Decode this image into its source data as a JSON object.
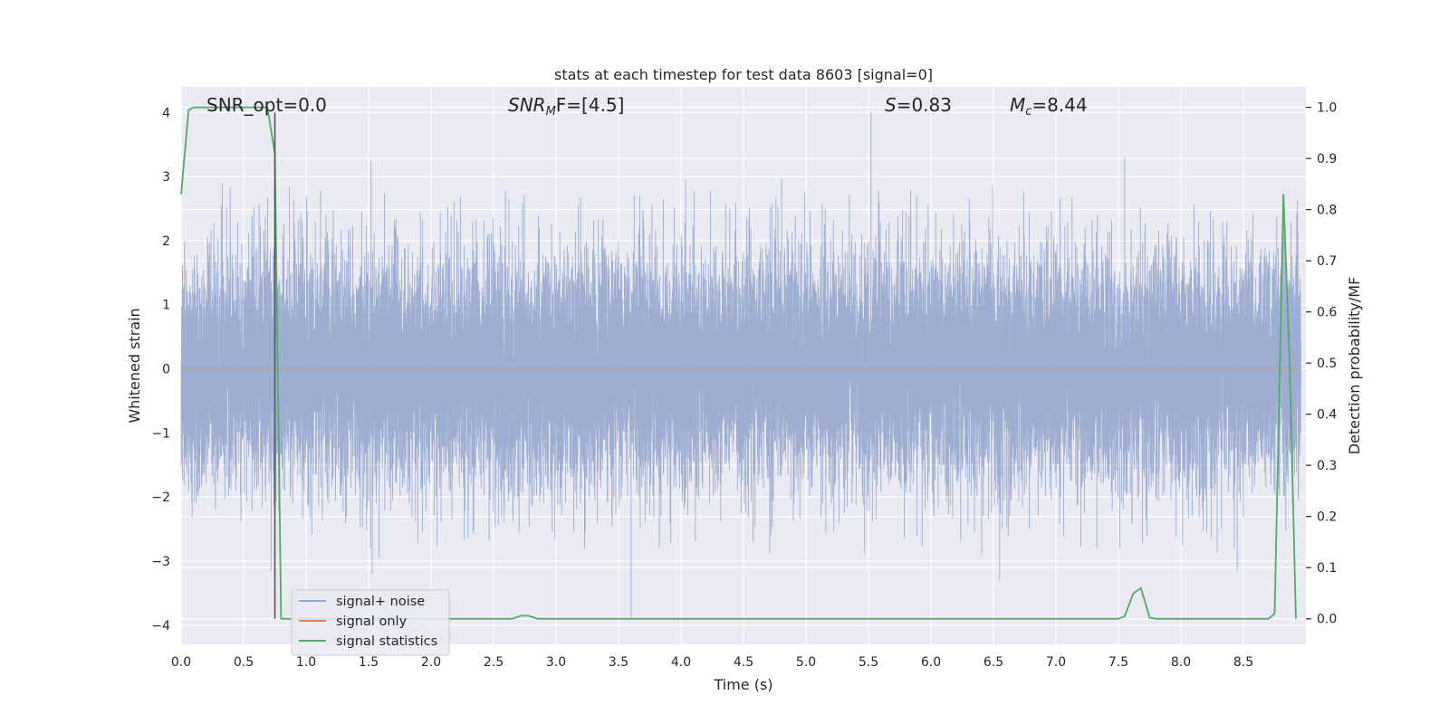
{
  "chart_data": {
    "type": "line",
    "title": "stats at each timestep for test data 8603 [signal=0]",
    "xlabel": "Time (s)",
    "ylabel_left": "Whitened strain",
    "ylabel_right": "Detection probability/MF",
    "xlim": [
      0.0,
      9.0
    ],
    "ylim_left": [
      -4.3,
      4.4
    ],
    "ylim_right": [
      -0.05,
      1.04
    ],
    "x_ticks": [
      "0.0",
      "0.5",
      "1.0",
      "1.5",
      "2.0",
      "2.5",
      "3.0",
      "3.5",
      "4.0",
      "4.5",
      "5.0",
      "5.5",
      "6.0",
      "6.5",
      "7.0",
      "7.5",
      "8.0",
      "8.5"
    ],
    "y_ticks_left": [
      "4",
      "3",
      "2",
      "1",
      "0",
      "−1",
      "−2",
      "−3",
      "−4"
    ],
    "y_ticks_right": [
      "1.0",
      "0.9",
      "0.8",
      "0.7",
      "0.6",
      "0.5",
      "0.4",
      "0.3",
      "0.2",
      "0.1",
      "0.0"
    ],
    "grid": true,
    "legend_position": "lower-left",
    "annotations": {
      "snr_opt": "SNR_opt=0.0",
      "snr_mf_sym": "SNR",
      "snr_mf_sub": "M",
      "snr_mf_rest": "F=[4.5]",
      "s_sym": "S",
      "s_rest": "=0.83",
      "mc_sym": "M",
      "mc_sub": "c",
      "mc_rest": "=8.44"
    },
    "marker_line_x": 0.75,
    "series": [
      {
        "name": "signal+ noise",
        "color": "#8fa3cc",
        "axis": "left",
        "sample_rate": 2048,
        "amplitude_std": 0.9,
        "notable_peaks": [
          {
            "x": 0.72,
            "y": -3.15
          },
          {
            "x": 1.52,
            "y": 3.25
          },
          {
            "x": 1.53,
            "y": -3.2
          },
          {
            "x": 3.6,
            "y": -3.9
          },
          {
            "x": 5.52,
            "y": 4.0
          },
          {
            "x": 6.55,
            "y": -3.3
          },
          {
            "x": 7.55,
            "y": 3.3
          },
          {
            "x": 8.45,
            "y": -3.15
          }
        ]
      },
      {
        "name": "signal only",
        "color": "#dd8452",
        "axis": "left",
        "values_note": "zero"
      },
      {
        "name": "signal statistics",
        "color": "#55a868",
        "axis": "right",
        "x": [
          0.0,
          0.06,
          0.1,
          0.2,
          0.3,
          0.4,
          0.5,
          0.6,
          0.69,
          0.75,
          0.8,
          0.9,
          1.0,
          1.5,
          2.0,
          2.5,
          2.65,
          2.72,
          2.78,
          2.85,
          2.9,
          3.0,
          3.5,
          4.0,
          4.5,
          5.0,
          5.5,
          6.0,
          6.5,
          7.0,
          7.5,
          7.55,
          7.62,
          7.68,
          7.75,
          7.8,
          8.0,
          8.3,
          8.5,
          8.7,
          8.75,
          8.82,
          8.87,
          8.9,
          8.92
        ],
        "y": [
          0.83,
          0.995,
          1.0,
          1.0,
          1.0,
          1.0,
          1.0,
          1.0,
          1.0,
          0.91,
          0.0,
          0.0,
          0.0,
          0.0,
          0.0,
          0.0,
          0.0,
          0.006,
          0.006,
          0.0,
          0.0,
          0.0,
          0.0,
          0.0,
          0.0,
          0.0,
          0.0,
          0.0,
          0.0,
          0.0,
          0.0,
          0.005,
          0.05,
          0.06,
          0.002,
          0.0,
          0.0,
          0.0,
          0.0,
          0.0,
          0.01,
          0.83,
          0.5,
          0.2,
          0.0
        ]
      }
    ]
  }
}
